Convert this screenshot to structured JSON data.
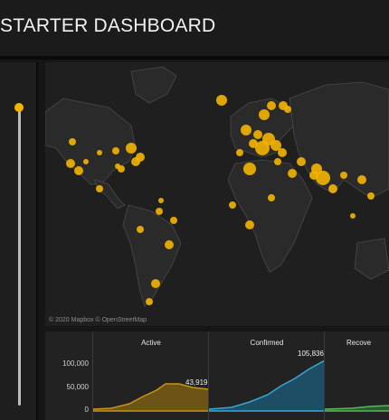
{
  "header": {
    "title": "STARTER DASHBOARD"
  },
  "map": {
    "attribution_mapbox": "© 2020 Mapbox",
    "attribution_osm": "© OpenStreetMap",
    "bubble_color": "#f4b400"
  },
  "charts": {
    "y_ticks": [
      "100,000",
      "50,000",
      "0"
    ],
    "panels": [
      {
        "title": "Active",
        "last_value": "43,919",
        "color": "#c8941a",
        "fill": "#6b5415"
      },
      {
        "title": "Confirmed",
        "last_value": "105,836",
        "color": "#3aa6d6",
        "fill": "#1d4e66"
      },
      {
        "title": "Recove",
        "last_value": "",
        "color": "#57b85a",
        "fill": "#2b5a2c"
      }
    ]
  }
}
